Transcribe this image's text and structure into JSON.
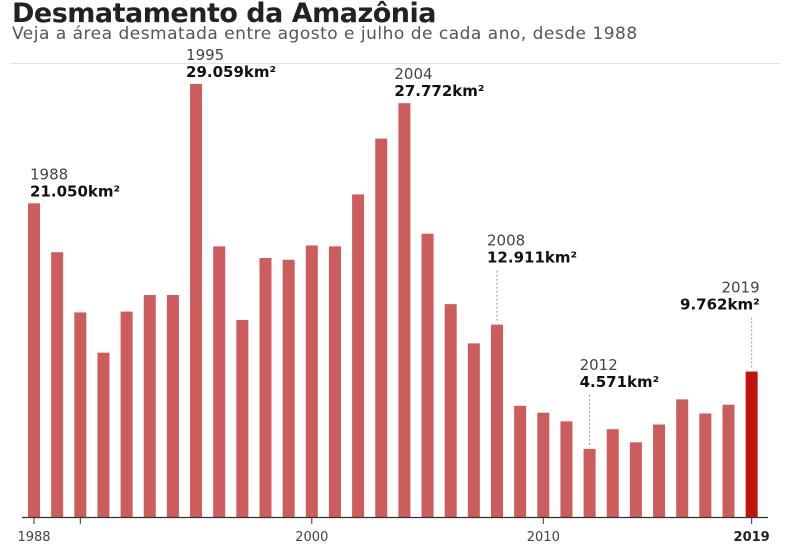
{
  "header": {
    "title": "Desmatamento da Amazônia",
    "subtitle": "Veja a área desmatada entre agosto e julho de cada ano, desde 1988"
  },
  "colors": {
    "bar": "#cd5c5c",
    "highlight": "#c0140c",
    "axis": "#333333",
    "leader": "#999999"
  },
  "chart_data": {
    "type": "bar",
    "title": "Desmatamento da Amazônia",
    "subtitle": "Veja a área desmatada entre agosto e julho de cada ano, desde 1988",
    "xlabel": "",
    "ylabel": "",
    "unit": "km²",
    "ylim": [
      0,
      30000
    ],
    "grid": false,
    "legend": "none",
    "categories": [
      1988,
      1989,
      1990,
      1991,
      1992,
      1993,
      1994,
      1995,
      1996,
      1997,
      1998,
      1999,
      2000,
      2001,
      2002,
      2003,
      2004,
      2005,
      2006,
      2007,
      2008,
      2009,
      2010,
      2011,
      2012,
      2013,
      2014,
      2015,
      2016,
      2017,
      2018,
      2019
    ],
    "values": [
      21050,
      17770,
      13730,
      11030,
      13786,
      14896,
      14896,
      29059,
      18161,
      13227,
      17383,
      17259,
      18226,
      18165,
      21651,
      25396,
      27772,
      19014,
      14286,
      11651,
      12911,
      7464,
      7000,
      6418,
      4571,
      5891,
      5012,
      6207,
      7893,
      6947,
      7536,
      9762
    ],
    "highlight_index": 31,
    "x_ticks": [
      {
        "year": 1988,
        "label": "1988",
        "bold": false
      },
      {
        "year": 1990,
        "label": "",
        "bold": false
      },
      {
        "year": 2000,
        "label": "2000",
        "bold": false
      },
      {
        "year": 2010,
        "label": "2010",
        "bold": false
      },
      {
        "year": 2019,
        "label": "2019",
        "bold": true
      }
    ],
    "annotations": [
      {
        "index": 0,
        "year": "1988",
        "value": "21.050km²",
        "leader": false
      },
      {
        "index": 7,
        "year": "1995",
        "value": "29.059km²",
        "leader": false
      },
      {
        "index": 16,
        "year": "2004",
        "value": "27.772km²",
        "leader": false
      },
      {
        "index": 20,
        "year": "2008",
        "value": "12.911km²",
        "leader": true
      },
      {
        "index": 24,
        "year": "2012",
        "value": "4.571km²",
        "leader": true
      },
      {
        "index": 31,
        "year": "2019",
        "value": "9.762km²",
        "leader": true
      }
    ]
  }
}
